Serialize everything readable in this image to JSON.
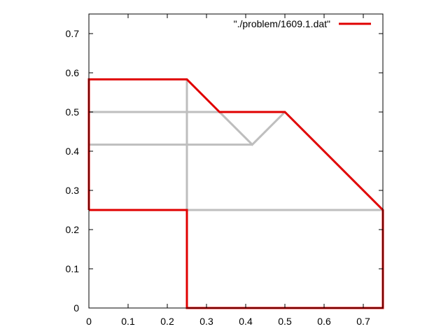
{
  "chart_data": {
    "type": "line",
    "title": "",
    "xlabel": "",
    "ylabel": "",
    "xlim": [
      0,
      0.75
    ],
    "ylim": [
      0,
      0.75
    ],
    "grid": false,
    "legend_position": "top-right",
    "x_ticks": [
      {
        "value": 0,
        "label": "0"
      },
      {
        "value": 0.1,
        "label": "0.1"
      },
      {
        "value": 0.2,
        "label": "0.2"
      },
      {
        "value": 0.3,
        "label": "0.3"
      },
      {
        "value": 0.4,
        "label": "0.4"
      },
      {
        "value": 0.5,
        "label": "0.5"
      },
      {
        "value": 0.6,
        "label": "0.6"
      },
      {
        "value": 0.7,
        "label": "0.7"
      }
    ],
    "y_ticks": [
      {
        "value": 0,
        "label": "0"
      },
      {
        "value": 0.1,
        "label": "0.1"
      },
      {
        "value": 0.2,
        "label": "0.2"
      },
      {
        "value": 0.3,
        "label": "0.3"
      },
      {
        "value": 0.4,
        "label": "0.4"
      },
      {
        "value": 0.5,
        "label": "0.5"
      },
      {
        "value": 0.6,
        "label": "0.6"
      },
      {
        "value": 0.7,
        "label": "0.7"
      }
    ],
    "series": [
      {
        "name": "\"./problem/1609.1.dat\"",
        "color": "#e00000",
        "segments": [
          [
            [
              0,
              0.25
            ],
            [
              0,
              0.5833
            ],
            [
              0.25,
              0.5833
            ],
            [
              0.3333,
              0.5
            ],
            [
              0.5,
              0.5
            ],
            [
              0.75,
              0.25
            ],
            [
              0.75,
              0
            ],
            [
              0.25,
              0
            ],
            [
              0.25,
              0.25
            ],
            [
              0,
              0.25
            ]
          ]
        ]
      },
      {
        "color": "#bebebe",
        "segments": [
          [
            [
              0,
              0.5
            ],
            [
              0.5,
              0.5
            ]
          ],
          [
            [
              0,
              0.4167
            ],
            [
              0.4167,
              0.4167
            ]
          ],
          [
            [
              0.3333,
              0.5
            ],
            [
              0.4167,
              0.4167
            ],
            [
              0.5,
              0.5
            ]
          ],
          [
            [
              0.25,
              0.25
            ],
            [
              0.75,
              0.25
            ]
          ],
          [
            [
              0.25,
              0.25
            ],
            [
              0.25,
              0.5833
            ]
          ]
        ]
      }
    ]
  }
}
